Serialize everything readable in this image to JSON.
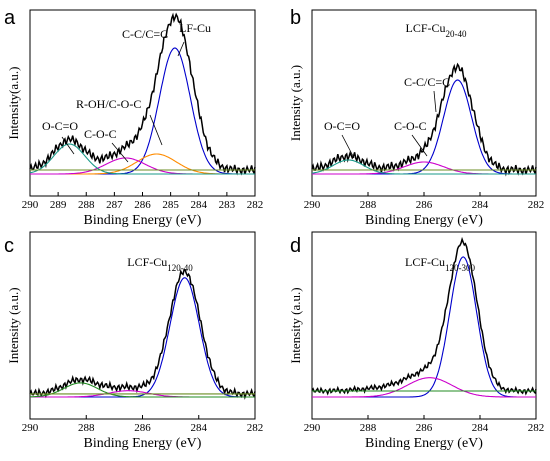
{
  "chart_data": [
    {
      "type": "line",
      "panel_letter": "a",
      "title": "LF-Cu",
      "title_sub": "",
      "xlabel": "Binding Energy (eV)",
      "ylabel": "Intensity(a.u.)",
      "xlim": [
        290,
        282
      ],
      "x_ticks": [
        290,
        289,
        288,
        287,
        286,
        285,
        284,
        283,
        282
      ],
      "annotations": [
        {
          "text": "C-C/C=C",
          "x": 285.0
        },
        {
          "text": "R-OH/C-O-C",
          "x": 285.7
        },
        {
          "text": "C-O-C",
          "x": 286.6
        },
        {
          "text": "O-C=O",
          "x": 288.6
        }
      ],
      "series": [
        {
          "color": "#000000",
          "values_desc": "raw",
          "peaks": [
            [
              284.8,
              0.7,
              0.6
            ],
            [
              285.5,
              0.1,
              0.7
            ],
            [
              286.6,
              0.08,
              0.7
            ],
            [
              288.6,
              0.15,
              0.55
            ]
          ],
          "baseline": 0.02
        },
        {
          "color": "#0000cc",
          "peaks": [
            [
              284.85,
              0.63,
              0.55
            ]
          ]
        },
        {
          "color": "#ff8c00",
          "peaks": [
            [
              285.5,
              0.1,
              0.7
            ]
          ]
        },
        {
          "color": "#cc00cc",
          "peaks": [
            [
              286.6,
              0.08,
              0.7
            ]
          ]
        },
        {
          "color": "#1a9a8a",
          "peaks": [
            [
              288.6,
              0.15,
              0.55
            ]
          ]
        },
        {
          "color": "#6b8e23",
          "peaks": [],
          "baseline": 0.02
        }
      ]
    },
    {
      "type": "line",
      "panel_letter": "b",
      "title": "LCF-Cu",
      "title_sub": "20-40",
      "xlabel": "Binding Energy (eV)",
      "ylabel": "Intensity (a.u.)",
      "xlim": [
        290,
        282
      ],
      "x_ticks": [
        290,
        288,
        286,
        284,
        282
      ],
      "annotations": [
        {
          "text": "C-C/C=C",
          "x": 284.8
        },
        {
          "text": "C-O-C",
          "x": 286.0
        },
        {
          "text": "O-C=O",
          "x": 288.7
        }
      ],
      "series": [
        {
          "color": "#000000",
          "peaks": [
            [
              284.8,
              0.5,
              0.55
            ],
            [
              286.0,
              0.06,
              0.7
            ],
            [
              288.7,
              0.07,
              0.55
            ]
          ],
          "baseline": 0.02
        },
        {
          "color": "#0000cc",
          "peaks": [
            [
              284.8,
              0.47,
              0.5
            ]
          ]
        },
        {
          "color": "#cc00cc",
          "peaks": [
            [
              286.0,
              0.06,
              0.7
            ]
          ]
        },
        {
          "color": "#1a9a8a",
          "peaks": [
            [
              288.7,
              0.07,
              0.55
            ]
          ]
        },
        {
          "color": "#6b8e23",
          "peaks": [],
          "baseline": 0.02
        }
      ]
    },
    {
      "type": "line",
      "panel_letter": "c",
      "title": "LCF-Cu",
      "title_sub": "120-40",
      "xlabel": "Binding Energy (eV)",
      "ylabel": "Intensity (a.u.)",
      "xlim": [
        290,
        282
      ],
      "x_ticks": [
        290,
        288,
        286,
        284,
        282
      ],
      "annotations": [],
      "series": [
        {
          "color": "#000000",
          "peaks": [
            [
              284.5,
              0.78,
              0.55
            ],
            [
              286.5,
              0.04,
              0.7
            ],
            [
              288.2,
              0.09,
              0.6
            ]
          ],
          "baseline": 0.02
        },
        {
          "color": "#0000cc",
          "peaks": [
            [
              284.5,
              0.76,
              0.52
            ]
          ]
        },
        {
          "color": "#cc00cc",
          "peaks": [
            [
              286.5,
              0.04,
              0.7
            ]
          ]
        },
        {
          "color": "#228b22",
          "peaks": [
            [
              288.2,
              0.09,
              0.6
            ]
          ]
        },
        {
          "color": "#6b8e23",
          "peaks": [],
          "baseline": 0.02
        }
      ]
    },
    {
      "type": "line",
      "panel_letter": "d",
      "title": "LCF-Cu",
      "title_sub": "120-300",
      "xlabel": "Binding Energy (eV)",
      "ylabel": "Intensity (a.u.)",
      "xlim": [
        290,
        282
      ],
      "x_ticks": [
        290,
        288,
        286,
        284,
        282
      ],
      "annotations": [],
      "series": [
        {
          "color": "#000000",
          "peaks": [
            [
              284.6,
              1.18,
              0.5
            ],
            [
              285.8,
              0.16,
              0.8
            ],
            [
              287.5,
              0.02,
              0.8
            ]
          ],
          "baseline": 0.05
        },
        {
          "color": "#0000cc",
          "peaks": [
            [
              284.6,
              1.16,
              0.48
            ]
          ]
        },
        {
          "color": "#cc00cc",
          "peaks": [
            [
              285.8,
              0.16,
              0.8
            ]
          ]
        },
        {
          "color": "#228b22",
          "peaks": [],
          "baseline": 0.05
        }
      ]
    }
  ]
}
